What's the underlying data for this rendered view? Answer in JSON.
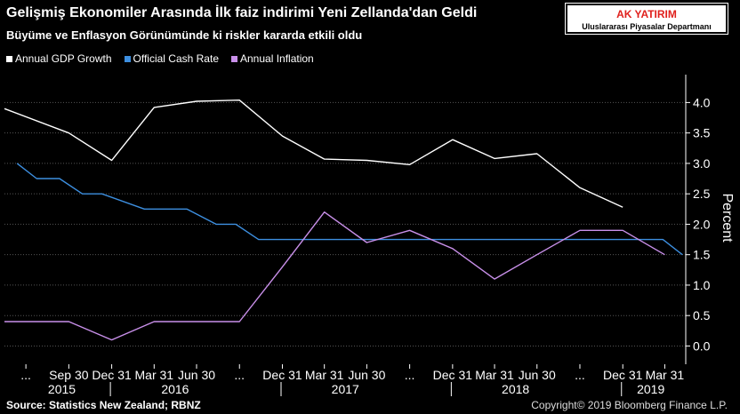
{
  "header": {
    "title": "Gelişmiş Ekonomiler Arasında İlk faiz indirimi Yeni Zellanda'dan Geldi",
    "subtitle": "Büyüme ve Enflasyon Görünümünde ki riskler kararda etkili oldu"
  },
  "badge": {
    "title": "AK YATIRIM",
    "subtitle": "Uluslararası Piyasalar Departmanı",
    "title_color": "#e0201c"
  },
  "footer": {
    "source": "Source: Statistics New Zealand; RBNZ",
    "copyright": "Copyright© 2019 Bloomberg Finance L.P."
  },
  "chart_data": {
    "type": "line",
    "ylabel": "Percent",
    "ylim": [
      -0.3,
      4.4
    ],
    "yticks": [
      "4.0",
      "3.5",
      "3.0",
      "2.5",
      "2.0",
      "1.5",
      "1.0",
      "0.5",
      "0.0"
    ],
    "grid": true,
    "legend_position": "top-left",
    "x_range": [
      "2015-05-15",
      "2019-05-15"
    ],
    "x_ticks": [
      {
        "label": "...",
        "date": "2015-06-30"
      },
      {
        "label": "Sep 30",
        "date": "2015-09-30"
      },
      {
        "label": "Dec 31",
        "date": "2015-12-31"
      },
      {
        "label": "Mar 31",
        "date": "2016-03-31"
      },
      {
        "label": "Jun 30",
        "date": "2016-06-30"
      },
      {
        "label": "...",
        "date": "2016-09-30"
      },
      {
        "label": "Dec 31",
        "date": "2016-12-31"
      },
      {
        "label": "Mar 31",
        "date": "2017-03-31"
      },
      {
        "label": "Jun 30",
        "date": "2017-06-30"
      },
      {
        "label": "...",
        "date": "2017-09-30"
      },
      {
        "label": "Dec 31",
        "date": "2017-12-31"
      },
      {
        "label": "Mar 31",
        "date": "2018-03-31"
      },
      {
        "label": "Jun 30",
        "date": "2018-06-30"
      },
      {
        "label": "...",
        "date": "2018-09-30"
      },
      {
        "label": "Dec 31",
        "date": "2018-12-31"
      },
      {
        "label": "Mar 31",
        "date": "2019-03-31"
      }
    ],
    "x_years": [
      {
        "label": "2015",
        "date": "2015-09-15"
      },
      {
        "label": "2016",
        "date": "2016-05-15"
      },
      {
        "label": "2017",
        "date": "2017-05-15"
      },
      {
        "label": "2018",
        "date": "2018-05-15"
      },
      {
        "label": "2019",
        "date": "2019-03-01"
      }
    ],
    "year_separators": [
      "2016-01-01",
      "2017-01-01",
      "2018-01-01",
      "2019-01-01"
    ],
    "series": [
      {
        "name": "Annual GDP Growth",
        "color": "#ffffff",
        "points": [
          [
            "2015-05-15",
            3.9
          ],
          [
            "2015-09-30",
            3.5
          ],
          [
            "2015-12-31",
            3.05
          ],
          [
            "2016-03-31",
            3.92
          ],
          [
            "2016-06-30",
            4.02
          ],
          [
            "2016-09-30",
            4.04
          ],
          [
            "2016-12-31",
            3.45
          ],
          [
            "2017-03-31",
            3.07
          ],
          [
            "2017-06-30",
            3.05
          ],
          [
            "2017-09-30",
            2.98
          ],
          [
            "2017-12-31",
            3.39
          ],
          [
            "2018-03-31",
            3.08
          ],
          [
            "2018-06-30",
            3.16
          ],
          [
            "2018-09-30",
            2.6
          ],
          [
            "2018-12-31",
            2.28
          ]
        ]
      },
      {
        "name": "Official Cash Rate",
        "color": "#3d8fe0",
        "step": true,
        "points": [
          [
            "2015-06-11",
            3.0
          ],
          [
            "2015-07-23",
            2.75
          ],
          [
            "2015-09-10",
            2.75
          ],
          [
            "2015-10-29",
            2.5
          ],
          [
            "2015-12-10",
            2.5
          ],
          [
            "2016-03-10",
            2.25
          ],
          [
            "2016-06-09",
            2.25
          ],
          [
            "2016-08-11",
            2.0
          ],
          [
            "2016-09-22",
            2.0
          ],
          [
            "2016-11-10",
            1.75
          ],
          [
            "2019-03-27",
            1.75
          ],
          [
            "2019-05-08",
            1.5
          ]
        ]
      },
      {
        "name": "Annual Inflation",
        "color": "#c990ea",
        "points": [
          [
            "2015-05-15",
            0.4
          ],
          [
            "2015-09-30",
            0.4
          ],
          [
            "2015-12-31",
            0.1
          ],
          [
            "2016-03-31",
            0.4
          ],
          [
            "2016-06-30",
            0.4
          ],
          [
            "2016-09-30",
            0.4
          ],
          [
            "2016-12-31",
            1.3
          ],
          [
            "2017-03-31",
            2.2
          ],
          [
            "2017-06-30",
            1.7
          ],
          [
            "2017-09-30",
            1.9
          ],
          [
            "2017-12-31",
            1.6
          ],
          [
            "2018-03-31",
            1.1
          ],
          [
            "2018-06-30",
            1.5
          ],
          [
            "2018-09-30",
            1.9
          ],
          [
            "2018-12-31",
            1.9
          ],
          [
            "2019-03-31",
            1.5
          ]
        ]
      }
    ]
  }
}
